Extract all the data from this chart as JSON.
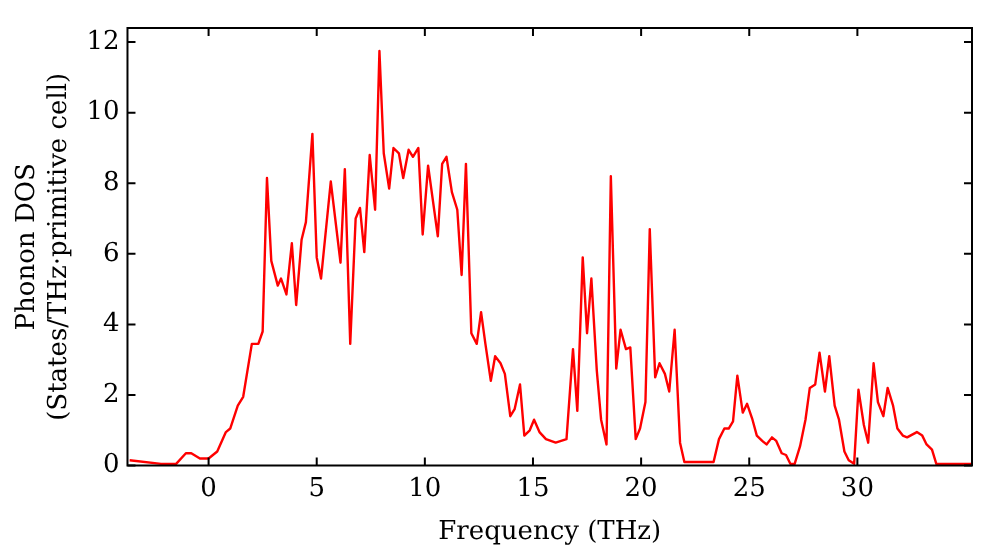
{
  "chart_data": {
    "type": "line",
    "xlabel": "Frequency (THz)",
    "ylabel": "Phonon DOS\n(States/THz·primitive cell)",
    "xlim": [
      -3.75,
      35.3
    ],
    "xticks": [
      0,
      5,
      10,
      15,
      20,
      25,
      30
    ],
    "ylim": [
      0,
      12.4
    ],
    "yticks": [
      0,
      2,
      4,
      6,
      8,
      10,
      12
    ],
    "grid": false,
    "legend": false,
    "marker": "none",
    "line_style": "solid",
    "series": [
      {
        "color": "#ff0000",
        "x": [
          -3.65,
          -2.2,
          -1.5,
          -1.05,
          -0.8,
          -0.4,
          0,
          0.4,
          0.8,
          1.0,
          1.35,
          1.6,
          2.0,
          2.3,
          2.5,
          2.7,
          2.9,
          3.2,
          3.35,
          3.6,
          3.85,
          4.05,
          4.3,
          4.5,
          4.8,
          5.0,
          5.2,
          5.65,
          6.1,
          6.3,
          6.55,
          6.8,
          7.0,
          7.2,
          7.45,
          7.7,
          7.9,
          8.1,
          8.35,
          8.55,
          8.8,
          9.0,
          9.25,
          9.45,
          9.7,
          9.9,
          10.15,
          10.6,
          10.8,
          11.0,
          11.25,
          11.5,
          11.7,
          11.9,
          12.15,
          12.4,
          12.6,
          12.8,
          13.05,
          13.25,
          13.5,
          13.7,
          13.95,
          14.15,
          14.4,
          14.6,
          14.85,
          15.05,
          15.3,
          15.6,
          16.05,
          16.55,
          16.85,
          17.05,
          17.3,
          17.5,
          17.7,
          17.95,
          18.15,
          18.4,
          18.6,
          18.85,
          19.05,
          19.3,
          19.5,
          19.75,
          19.95,
          20.2,
          20.4,
          20.65,
          20.85,
          21.1,
          21.3,
          21.55,
          21.8,
          22.0,
          23.35,
          23.6,
          23.85,
          24.05,
          24.25,
          24.45,
          24.7,
          24.9,
          25.15,
          25.35,
          25.6,
          25.8,
          26.05,
          26.25,
          26.5,
          26.7,
          26.9,
          27.1,
          27.35,
          27.6,
          27.8,
          28.05,
          28.25,
          28.5,
          28.7,
          28.95,
          29.15,
          29.4,
          29.6,
          29.85,
          30.05,
          30.3,
          30.5,
          30.75,
          30.95,
          31.2,
          31.4,
          31.65,
          31.85,
          32.1,
          32.3,
          32.75,
          33.0,
          33.2,
          33.45,
          33.65,
          35.3
        ],
        "values": [
          0.15,
          0.05,
          0.05,
          0.35,
          0.35,
          0.2,
          0.2,
          0.4,
          0.95,
          1.05,
          1.7,
          1.95,
          3.45,
          3.45,
          3.8,
          8.15,
          5.8,
          5.1,
          5.3,
          4.85,
          6.3,
          4.55,
          6.4,
          6.9,
          9.4,
          5.9,
          5.3,
          8.05,
          5.75,
          8.4,
          3.45,
          7.0,
          7.3,
          6.05,
          8.8,
          7.25,
          11.75,
          8.85,
          7.85,
          9.0,
          8.85,
          8.15,
          8.95,
          8.75,
          9.0,
          6.55,
          8.5,
          6.5,
          8.55,
          8.75,
          7.75,
          7.25,
          5.4,
          8.55,
          3.75,
          3.45,
          4.35,
          3.45,
          2.4,
          3.1,
          2.9,
          2.6,
          1.4,
          1.6,
          2.3,
          0.85,
          1.0,
          1.3,
          0.95,
          0.75,
          0.65,
          0.75,
          3.3,
          1.55,
          5.9,
          3.75,
          5.3,
          2.7,
          1.3,
          0.6,
          8.2,
          2.75,
          3.85,
          3.3,
          3.35,
          0.75,
          1.05,
          1.8,
          6.7,
          2.5,
          2.9,
          2.6,
          2.1,
          3.85,
          0.65,
          0.1,
          0.1,
          0.75,
          1.05,
          1.05,
          1.25,
          2.55,
          1.5,
          1.75,
          1.3,
          0.85,
          0.7,
          0.6,
          0.8,
          0.7,
          0.35,
          0.3,
          0.05,
          0.05,
          0.55,
          1.3,
          2.2,
          2.3,
          3.2,
          2.1,
          3.1,
          1.7,
          1.3,
          0.4,
          0.15,
          0.05,
          2.15,
          1.15,
          0.65,
          2.9,
          1.8,
          1.4,
          2.2,
          1.7,
          1.05,
          0.85,
          0.8,
          0.95,
          0.85,
          0.6,
          0.45,
          0.05,
          0.05
        ]
      }
    ]
  }
}
